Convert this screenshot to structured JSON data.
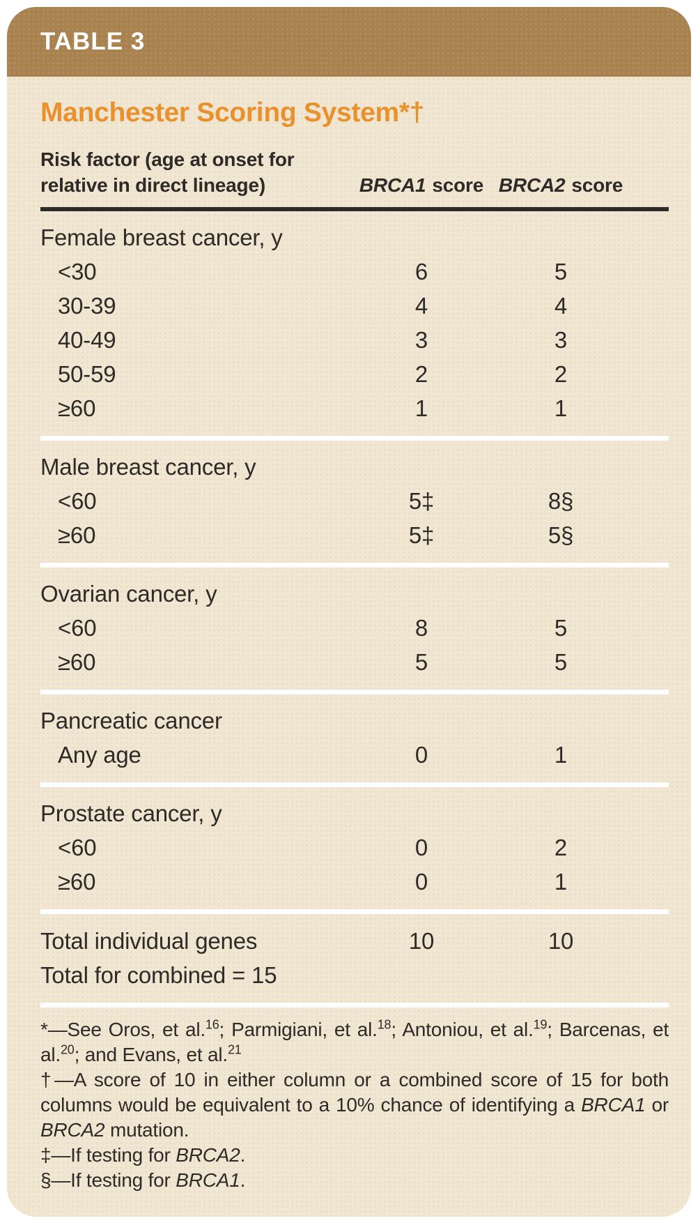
{
  "header": {
    "tag": "TABLE 3"
  },
  "title": "Manchester Scoring System*†",
  "colors": {
    "header_brown": "#a8824f",
    "title_orange": "#e8912d",
    "card_beige": "#f0e6d2",
    "text_dark": "#2e2a27",
    "divider_white": "#ffffff"
  },
  "columns": {
    "risk_factor_line1": "Risk factor (age at onset for",
    "risk_factor_line2": "relative in direct lineage)",
    "brca1": {
      "gene": "BRCA1",
      "label": "score"
    },
    "brca2": {
      "gene": "BRCA2",
      "label": "score"
    }
  },
  "table": {
    "sections": [
      {
        "header": "Female breast cancer, y",
        "rows": [
          {
            "label": "<30",
            "brca1": "6",
            "brca2": "5"
          },
          {
            "label": "30-39",
            "brca1": "4",
            "brca2": "4"
          },
          {
            "label": "40-49",
            "brca1": "3",
            "brca2": "3"
          },
          {
            "label": "50-59",
            "brca1": "2",
            "brca2": "2"
          },
          {
            "label": "≥60",
            "brca1": "1",
            "brca2": "1"
          }
        ]
      },
      {
        "header": "Male breast cancer, y",
        "rows": [
          {
            "label": "<60",
            "brca1": "5‡",
            "brca2": "8§"
          },
          {
            "label": "≥60",
            "brca1": "5‡",
            "brca2": "5§"
          }
        ]
      },
      {
        "header": "Ovarian cancer, y",
        "rows": [
          {
            "label": "<60",
            "brca1": "8",
            "brca2": "5"
          },
          {
            "label": "≥60",
            "brca1": "5",
            "brca2": "5"
          }
        ]
      },
      {
        "header": "Pancreatic cancer",
        "rows": [
          {
            "label": "Any age",
            "brca1": "0",
            "brca2": "1"
          }
        ]
      },
      {
        "header": "Prostate cancer, y",
        "rows": [
          {
            "label": "<60",
            "brca1": "0",
            "brca2": "2"
          },
          {
            "label": "≥60",
            "brca1": "0",
            "brca2": "1"
          }
        ]
      }
    ],
    "totals": {
      "individual": {
        "label": "Total individual genes",
        "brca1": "10",
        "brca2": "10"
      },
      "combined": "Total for combined = 15"
    }
  },
  "footnotes": [
    {
      "segments": [
        {
          "text": "*—See Oros, et al."
        },
        {
          "text": "16",
          "sup": true
        },
        {
          "text": "; Parmigiani, et al."
        },
        {
          "text": "18",
          "sup": true
        },
        {
          "text": "; Antoniou, et al."
        },
        {
          "text": "19",
          "sup": true
        },
        {
          "text": "; Barcenas, et al."
        },
        {
          "text": "20",
          "sup": true
        },
        {
          "text": "; and Evans, et al."
        },
        {
          "text": "21",
          "sup": true
        }
      ]
    },
    {
      "segments": [
        {
          "text": "†—A score of 10 in either column or a combined score of 15 for both columns would be equivalent to a 10% chance of identifying a "
        },
        {
          "text": "BRCA1",
          "italic": true
        },
        {
          "text": " or "
        },
        {
          "text": "BRCA2",
          "italic": true
        },
        {
          "text": " mutation."
        }
      ]
    },
    {
      "segments": [
        {
          "text": "‡—If testing for "
        },
        {
          "text": "BRCA2",
          "italic": true
        },
        {
          "text": "."
        }
      ]
    },
    {
      "segments": [
        {
          "text": "§—If testing for "
        },
        {
          "text": "BRCA1",
          "italic": true
        },
        {
          "text": "."
        }
      ]
    }
  ]
}
